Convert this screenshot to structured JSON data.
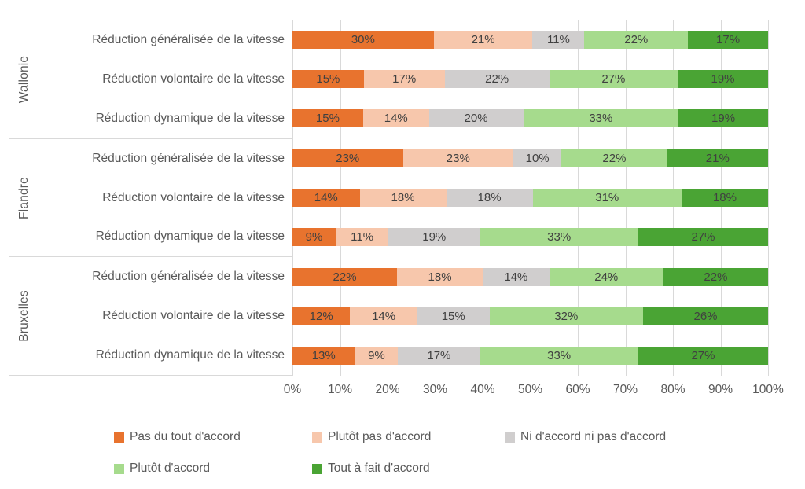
{
  "chart_data": {
    "type": "bar",
    "subtype": "stacked-100-horizontal",
    "unit": "%",
    "title": "",
    "xlabel": "",
    "ylabel": "",
    "xlim": [
      0,
      100
    ],
    "grid": true,
    "legend_position": "bottom",
    "x_ticks": [
      "0%",
      "10%",
      "20%",
      "30%",
      "40%",
      "50%",
      "60%",
      "70%",
      "80%",
      "90%",
      "100%"
    ],
    "series": [
      {
        "name": "Pas du tout d'accord",
        "color": "#E8732E"
      },
      {
        "name": "Plutôt pas d'accord",
        "color": "#F7C7AC"
      },
      {
        "name": "Ni d'accord ni pas d'accord",
        "color": "#D0CECE"
      },
      {
        "name": "Plutôt d'accord",
        "color": "#A6DB8D"
      },
      {
        "name": "Tout à fait d'accord",
        "color": "#4AA434"
      }
    ],
    "groups": [
      {
        "region": "Wallonie",
        "rows": [
          {
            "label": "Réduction généralisée de la vitesse",
            "values": [
              30,
              21,
              11,
              22,
              17
            ]
          },
          {
            "label": "Réduction volontaire de la vitesse",
            "values": [
              15,
              17,
              22,
              27,
              19
            ]
          },
          {
            "label": "Réduction dynamique de la vitesse",
            "values": [
              15,
              14,
              20,
              33,
              19
            ]
          }
        ]
      },
      {
        "region": "Flandre",
        "rows": [
          {
            "label": "Réduction généralisée de la vitesse",
            "values": [
              23,
              23,
              10,
              22,
              21
            ]
          },
          {
            "label": "Réduction volontaire de la vitesse",
            "values": [
              14,
              18,
              18,
              31,
              18
            ]
          },
          {
            "label": "Réduction dynamique de la vitesse",
            "values": [
              9,
              11,
              19,
              33,
              27
            ]
          }
        ]
      },
      {
        "region": "Bruxelles",
        "rows": [
          {
            "label": "Réduction généralisée de la vitesse",
            "values": [
              22,
              18,
              14,
              24,
              22
            ]
          },
          {
            "label": "Réduction volontaire de la vitesse",
            "values": [
              12,
              14,
              15,
              32,
              26
            ]
          },
          {
            "label": "Réduction dynamique de la vitesse",
            "values": [
              13,
              9,
              17,
              33,
              27
            ]
          }
        ]
      }
    ]
  }
}
